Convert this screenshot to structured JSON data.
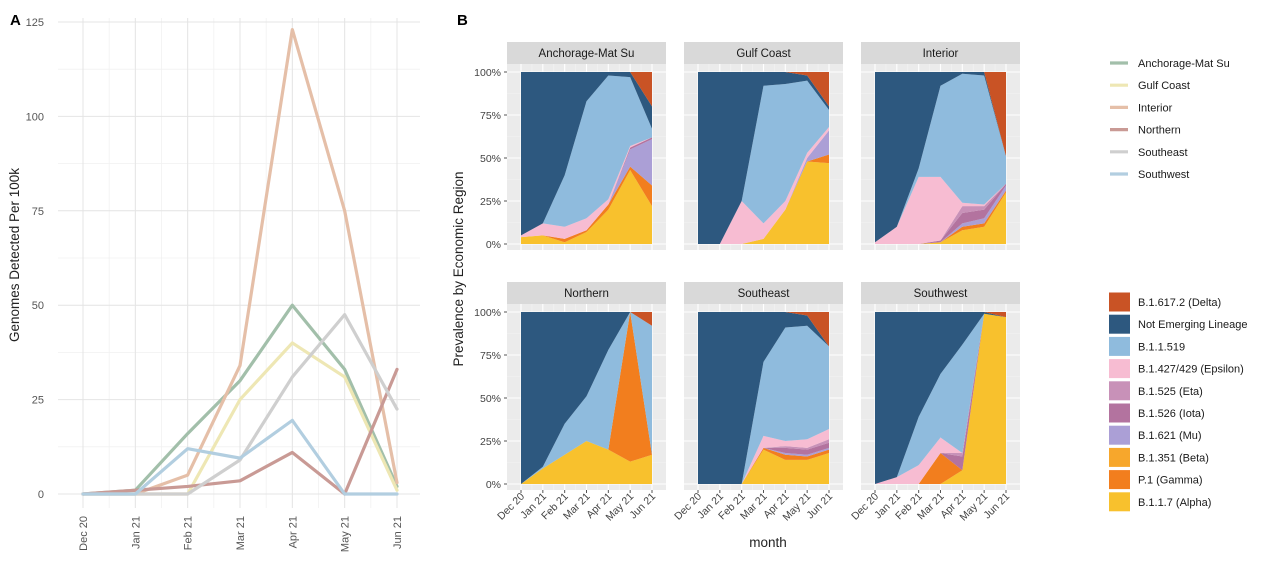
{
  "panelA": {
    "panel_label": "A",
    "ylabel": "Genomes Detected Per 100k",
    "y_ticks": [
      "0",
      "25",
      "50",
      "75",
      "100",
      "125"
    ],
    "x_ticks": [
      "Dec 20",
      "Jan 21",
      "Feb 21",
      "Mar 21",
      "Apr 21",
      "May 21",
      "Jun 21"
    ]
  },
  "panelB": {
    "panel_label": "B",
    "ylabel": "Prevalence by Economic Region",
    "xlabel": "month",
    "y_ticks": [
      "0%",
      "25%",
      "50%",
      "75%",
      "100%"
    ],
    "x_ticks": [
      "Dec 20",
      "Jan 21",
      "Feb 21",
      "Mar 21",
      "Apr 21",
      "May 21",
      "Jun 21"
    ],
    "facet_titles": [
      "Anchorage-Mat Su",
      "Gulf Coast",
      "Interior",
      "Northern",
      "Southeast",
      "Southwest"
    ]
  },
  "legend_regions": {
    "items": [
      "Anchorage-Mat Su",
      "Gulf Coast",
      "Interior",
      "Northern",
      "Southeast",
      "Southwest"
    ],
    "colors": [
      "#a2bfaa",
      "#eee7b4",
      "#e5bfa8",
      "#c99a95",
      "#cfcfcf",
      "#b2cee0"
    ]
  },
  "legend_lineages": {
    "items": [
      "B.1.617.2 (Delta)",
      "Not Emerging Lineage",
      "B.1.1.519",
      "B.1.427/429 (Epsilon)",
      "B.1.525 (Eta)",
      "B.1.526 (Iota)",
      "B.1.621 (Mu)",
      "B.1.351 (Beta)",
      "P.1 (Gamma)",
      "B.1.1.7 (Alpha)"
    ],
    "colors": [
      "#c95325",
      "#2d587f",
      "#8fbbdd",
      "#f7bcd2",
      "#c891b8",
      "#b3739f",
      "#ab9fd6",
      "#f7a72c",
      "#f27e1e",
      "#f8c12d"
    ]
  },
  "chart_data": [
    {
      "type": "line",
      "ylabel": "Genomes Detected Per 100k",
      "xlabel": "",
      "x": [
        "Dec 20",
        "Jan 21",
        "Feb 21",
        "Mar 21",
        "Apr 21",
        "May 21",
        "Jun 21"
      ],
      "ylim": [
        0,
        125
      ],
      "grid": true,
      "series": [
        {
          "name": "Anchorage-Mat Su",
          "color": "#a2bfaa",
          "values": [
            0,
            1,
            16,
            30,
            50,
            33,
            2
          ]
        },
        {
          "name": "Gulf Coast",
          "color": "#eee7b4",
          "values": [
            0,
            0,
            0,
            25,
            40,
            31,
            1
          ]
        },
        {
          "name": "Interior",
          "color": "#e5bfa8",
          "values": [
            0,
            0,
            5,
            34,
            123,
            75,
            3
          ]
        },
        {
          "name": "Northern",
          "color": "#c99a95",
          "values": [
            0,
            1,
            2,
            3.5,
            11,
            0,
            33
          ]
        },
        {
          "name": "Southeast",
          "color": "#cfcfcf",
          "values": [
            0,
            0,
            0,
            9,
            31,
            47.5,
            22.5
          ]
        },
        {
          "name": "Southwest",
          "color": "#b2cee0",
          "values": [
            0,
            0,
            12,
            9.5,
            19.5,
            0,
            0
          ]
        }
      ]
    },
    {
      "type": "area",
      "stacked": true,
      "ylabel": "Prevalence by Economic Region",
      "xlabel": "month",
      "x": [
        "Dec 20",
        "Jan 21",
        "Feb 21",
        "Mar 21",
        "Apr 21",
        "May 21",
        "Jun 21"
      ],
      "ylim": [
        0,
        100
      ],
      "legend_position": "right",
      "order_top_to_bottom": [
        "B.1.617.2 (Delta)",
        "Not Emerging Lineage",
        "B.1.1.519",
        "B.1.427/429 (Epsilon)",
        "B.1.525 (Eta)",
        "B.1.526 (Iota)",
        "B.1.621 (Mu)",
        "B.1.351 (Beta)",
        "P.1 (Gamma)",
        "B.1.1.7 (Alpha)"
      ],
      "facets": [
        {
          "name": "Anchorage-Mat Su",
          "series": [
            {
              "name": "B.1.1.7 (Alpha)",
              "values": [
                4,
                5,
                1,
                7,
                20,
                43,
                22
              ]
            },
            {
              "name": "P.1 (Gamma)",
              "values": [
                0,
                0,
                2,
                1,
                3,
                2,
                12
              ]
            },
            {
              "name": "B.1.351 (Beta)",
              "values": [
                0,
                0,
                0,
                0,
                0,
                0,
                0
              ]
            },
            {
              "name": "B.1.621 (Mu)",
              "values": [
                0,
                0,
                0,
                0,
                0,
                10,
                27
              ]
            },
            {
              "name": "B.1.526 (Iota)",
              "values": [
                0,
                0,
                0,
                0,
                0,
                1,
                1
              ]
            },
            {
              "name": "B.1.525 (Eta)",
              "values": [
                0,
                0,
                0,
                0,
                0,
                0,
                0
              ]
            },
            {
              "name": "B.1.427/429 (Epsilon)",
              "values": [
                1,
                7,
                7,
                7,
                3,
                1,
                0
              ]
            },
            {
              "name": "B.1.1.519",
              "values": [
                0,
                0,
                30,
                68,
                72,
                40,
                5
              ]
            },
            {
              "name": "Not Emerging Lineage",
              "values": [
                95,
                88,
                60,
                17,
                2,
                3,
                13
              ]
            },
            {
              "name": "B.1.617.2 (Delta)",
              "values": [
                0,
                0,
                0,
                0,
                0,
                0,
                20
              ]
            }
          ]
        },
        {
          "name": "Gulf Coast",
          "series": [
            {
              "name": "B.1.1.7 (Alpha)",
              "values": [
                0,
                0,
                0,
                3,
                20,
                48,
                47
              ]
            },
            {
              "name": "P.1 (Gamma)",
              "values": [
                0,
                0,
                0,
                0,
                0,
                0,
                5
              ]
            },
            {
              "name": "B.1.351 (Beta)",
              "values": [
                0,
                0,
                0,
                0,
                0,
                0,
                0
              ]
            },
            {
              "name": "B.1.621 (Mu)",
              "values": [
                0,
                0,
                0,
                0,
                0,
                2,
                14
              ]
            },
            {
              "name": "B.1.526 (Iota)",
              "values": [
                0,
                0,
                0,
                0,
                0,
                0,
                0
              ]
            },
            {
              "name": "B.1.525 (Eta)",
              "values": [
                0,
                0,
                0,
                0,
                0,
                0,
                0
              ]
            },
            {
              "name": "B.1.427/429 (Epsilon)",
              "values": [
                0,
                0,
                25,
                9,
                5,
                3,
                2
              ]
            },
            {
              "name": "B.1.1.519",
              "values": [
                0,
                0,
                0,
                80,
                68,
                42,
                10
              ]
            },
            {
              "name": "Not Emerging Lineage",
              "values": [
                100,
                100,
                75,
                8,
                7,
                3,
                2
              ]
            },
            {
              "name": "B.1.617.2 (Delta)",
              "values": [
                0,
                0,
                0,
                0,
                0,
                2,
                20
              ]
            }
          ]
        },
        {
          "name": "Interior",
          "series": [
            {
              "name": "B.1.1.7 (Alpha)",
              "values": [
                0,
                0,
                0,
                1,
                8,
                10,
                30
              ]
            },
            {
              "name": "P.1 (Gamma)",
              "values": [
                0,
                0,
                0,
                0,
                2,
                2,
                1
              ]
            },
            {
              "name": "B.1.351 (Beta)",
              "values": [
                0,
                0,
                0,
                0,
                0,
                0,
                0
              ]
            },
            {
              "name": "B.1.621 (Mu)",
              "values": [
                0,
                0,
                0,
                0,
                2,
                3,
                3
              ]
            },
            {
              "name": "B.1.526 (Iota)",
              "values": [
                0,
                0,
                0,
                1,
                6,
                5,
                1
              ]
            },
            {
              "name": "B.1.525 (Eta)",
              "values": [
                0,
                0,
                0,
                0,
                4,
                2,
                0
              ]
            },
            {
              "name": "B.1.427/429 (Epsilon)",
              "values": [
                1,
                10,
                39,
                37,
                2,
                1,
                0
              ]
            },
            {
              "name": "B.1.1.519",
              "values": [
                0,
                0,
                5,
                53,
                75,
                75,
                16
              ]
            },
            {
              "name": "Not Emerging Lineage",
              "values": [
                99,
                90,
                56,
                8,
                1,
                2,
                0
              ]
            },
            {
              "name": "B.1.617.2 (Delta)",
              "values": [
                0,
                0,
                0,
                0,
                0,
                0,
                49
              ]
            }
          ]
        },
        {
          "name": "Northern",
          "series": [
            {
              "name": "B.1.1.7 (Alpha)",
              "values": [
                0,
                9,
                17,
                25,
                20,
                13,
                17
              ]
            },
            {
              "name": "P.1 (Gamma)",
              "values": [
                0,
                0,
                0,
                0,
                0,
                87,
                0
              ]
            },
            {
              "name": "B.1.351 (Beta)",
              "values": [
                0,
                0,
                0,
                0,
                0,
                0,
                0
              ]
            },
            {
              "name": "B.1.621 (Mu)",
              "values": [
                0,
                0,
                0,
                0,
                0,
                0,
                0
              ]
            },
            {
              "name": "B.1.526 (Iota)",
              "values": [
                0,
                0,
                0,
                0,
                0,
                0,
                0
              ]
            },
            {
              "name": "B.1.525 (Eta)",
              "values": [
                0,
                0,
                0,
                0,
                0,
                0,
                0
              ]
            },
            {
              "name": "B.1.427/429 (Epsilon)",
              "values": [
                0,
                0,
                0,
                0,
                0,
                0,
                0
              ]
            },
            {
              "name": "B.1.1.519",
              "values": [
                0,
                1,
                18,
                26,
                58,
                0,
                75
              ]
            },
            {
              "name": "Not Emerging Lineage",
              "values": [
                100,
                90,
                65,
                49,
                22,
                0,
                0
              ]
            },
            {
              "name": "B.1.617.2 (Delta)",
              "values": [
                0,
                0,
                0,
                0,
                0,
                0,
                8
              ]
            }
          ]
        },
        {
          "name": "Southeast",
          "series": [
            {
              "name": "B.1.1.7 (Alpha)",
              "values": [
                0,
                0,
                0,
                20,
                14,
                14,
                18
              ]
            },
            {
              "name": "P.1 (Gamma)",
              "values": [
                0,
                0,
                0,
                1,
                3,
                2,
                2
              ]
            },
            {
              "name": "B.1.351 (Beta)",
              "values": [
                0,
                0,
                0,
                0,
                0,
                0,
                0
              ]
            },
            {
              "name": "B.1.621 (Mu)",
              "values": [
                0,
                0,
                0,
                0,
                1,
                1,
                1
              ]
            },
            {
              "name": "B.1.526 (Iota)",
              "values": [
                0,
                0,
                0,
                0,
                3,
                3,
                3
              ]
            },
            {
              "name": "B.1.525 (Eta)",
              "values": [
                0,
                0,
                0,
                0,
                1,
                1,
                2
              ]
            },
            {
              "name": "B.1.427/429 (Epsilon)",
              "values": [
                0,
                0,
                0,
                7,
                3,
                5,
                6
              ]
            },
            {
              "name": "B.1.1.519",
              "values": [
                0,
                0,
                0,
                43,
                66,
                66,
                48
              ]
            },
            {
              "name": "Not Emerging Lineage",
              "values": [
                100,
                100,
                100,
                29,
                9,
                6,
                0
              ]
            },
            {
              "name": "B.1.617.2 (Delta)",
              "values": [
                0,
                0,
                0,
                0,
                0,
                2,
                20
              ]
            }
          ]
        },
        {
          "name": "Southwest",
          "series": [
            {
              "name": "B.1.1.7 (Alpha)",
              "values": [
                0,
                0,
                0,
                0,
                8,
                99,
                97
              ]
            },
            {
              "name": "P.1 (Gamma)",
              "values": [
                0,
                0,
                0,
                18,
                0,
                0,
                0
              ]
            },
            {
              "name": "B.1.351 (Beta)",
              "values": [
                0,
                0,
                0,
                0,
                0,
                0,
                0
              ]
            },
            {
              "name": "B.1.621 (Mu)",
              "values": [
                0,
                0,
                0,
                0,
                0,
                0,
                0
              ]
            },
            {
              "name": "B.1.526 (Iota)",
              "values": [
                0,
                0,
                0,
                0,
                8,
                0,
                0
              ]
            },
            {
              "name": "B.1.525 (Eta)",
              "values": [
                0,
                0,
                0,
                0,
                2,
                0,
                0
              ]
            },
            {
              "name": "B.1.427/429 (Epsilon)",
              "values": [
                0,
                4,
                11,
                9,
                0,
                0,
                0
              ]
            },
            {
              "name": "B.1.1.519",
              "values": [
                0,
                0,
                28,
                37,
                63,
                0,
                0
              ]
            },
            {
              "name": "Not Emerging Lineage",
              "values": [
                100,
                96,
                61,
                36,
                19,
                1,
                0
              ]
            },
            {
              "name": "B.1.617.2 (Delta)",
              "values": [
                0,
                0,
                0,
                0,
                0,
                0,
                3
              ]
            }
          ]
        }
      ]
    }
  ]
}
